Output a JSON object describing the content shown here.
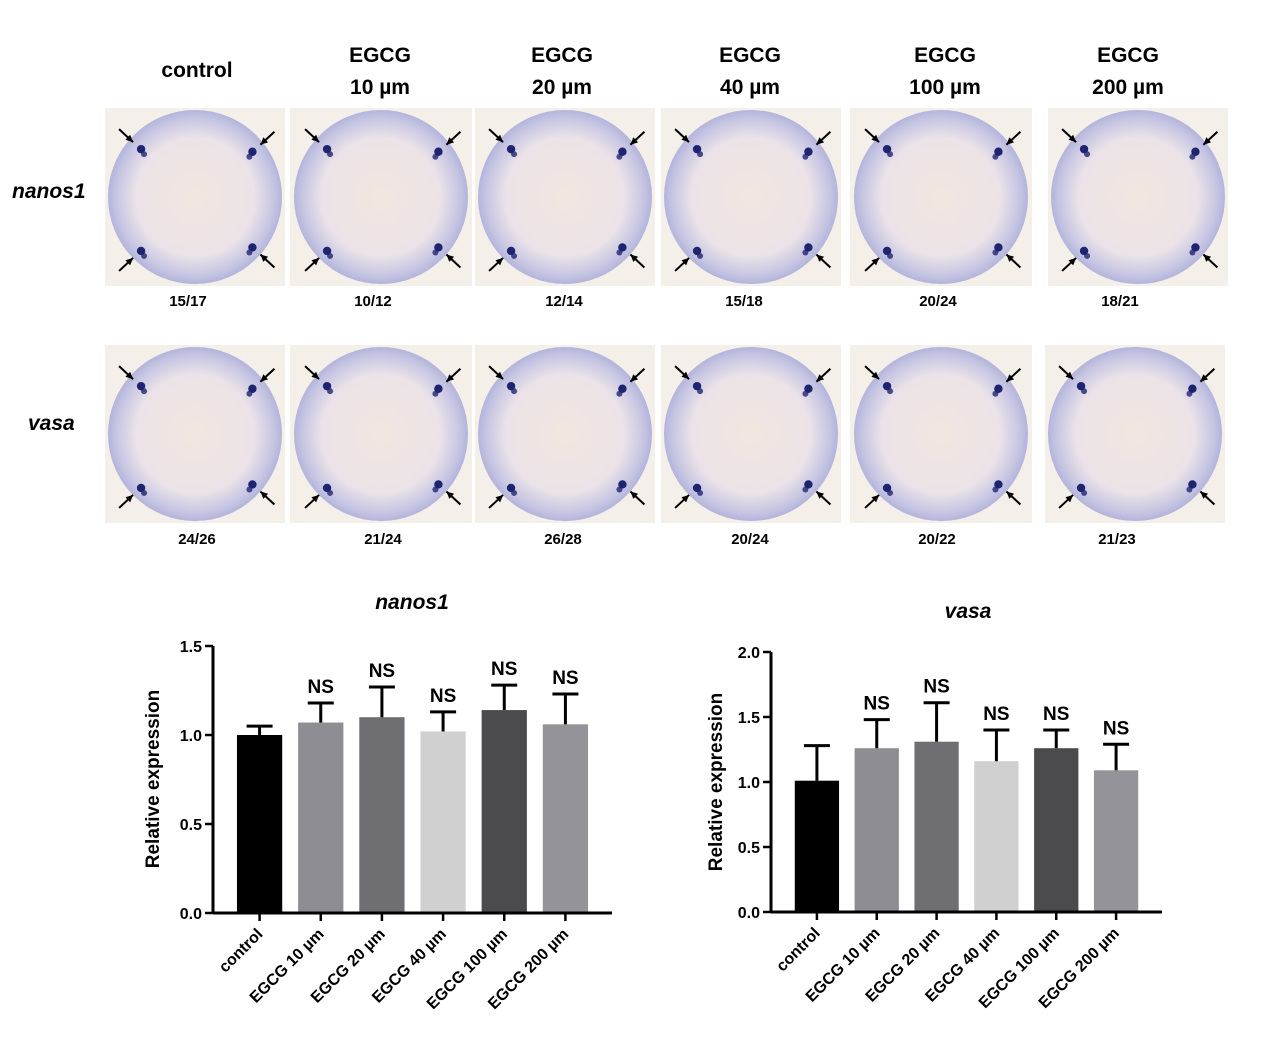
{
  "columns": [
    {
      "line1": "control",
      "line2": ""
    },
    {
      "line1": "EGCG",
      "line2": "10 µm"
    },
    {
      "line1": "EGCG",
      "line2": "20 µm"
    },
    {
      "line1": "EGCG",
      "line2": "40 µm"
    },
    {
      "line1": "EGCG",
      "line2": "100 µm"
    },
    {
      "line1": "EGCG",
      "line2": "200 µm"
    }
  ],
  "rows": [
    {
      "label": "nanos1",
      "counts": [
        "15/17",
        "10/12",
        "12/14",
        "15/18",
        "20/24",
        "18/21"
      ]
    },
    {
      "label": "vasa",
      "counts": [
        "24/26",
        "21/24",
        "26/28",
        "20/24",
        "20/22",
        "21/23"
      ]
    }
  ],
  "colors": {
    "embryo_fill": "#ece6ec",
    "embryo_rim": "#a9abd6",
    "embryo_center": "#f3e6df",
    "spot": "#1e2470",
    "background_tile": "#f4efe9",
    "bars": [
      "#000000",
      "#8e8d94",
      "#6e6e73",
      "#d0d0d0",
      "#4b4b4e",
      "#939399"
    ]
  },
  "chart_data": [
    {
      "type": "bar",
      "title": "nanos1",
      "ylabel": "Relative expression",
      "xlabel": "",
      "categories": [
        "control",
        "EGCG 10 µm",
        "EGCG 20 µm",
        "EGCG 40 µm",
        "EGCG 100 µm",
        "EGCG 200 µm"
      ],
      "values": [
        1.0,
        1.07,
        1.1,
        1.02,
        1.14,
        1.06
      ],
      "errors": [
        0.05,
        0.11,
        0.17,
        0.11,
        0.14,
        0.17
      ],
      "annotations": [
        "",
        "NS",
        "NS",
        "NS",
        "NS",
        "NS"
      ],
      "ylim": [
        0,
        1.5
      ],
      "yticks": [
        "0.0",
        "0.5",
        "1.0",
        "1.5"
      ],
      "grid": false
    },
    {
      "type": "bar",
      "title": "vasa",
      "ylabel": "Relative expression",
      "xlabel": "",
      "categories": [
        "control",
        "EGCG 10 µm",
        "EGCG 20 µm",
        "EGCG 40 µm",
        "EGCG 100 µm",
        "EGCG 200 µm"
      ],
      "values": [
        1.01,
        1.26,
        1.31,
        1.16,
        1.26,
        1.09
      ],
      "errors": [
        0.27,
        0.22,
        0.3,
        0.24,
        0.14,
        0.2
      ],
      "annotations": [
        "",
        "NS",
        "NS",
        "NS",
        "NS",
        "NS"
      ],
      "ylim": [
        0,
        2.0
      ],
      "yticks": [
        "0.0",
        "0.5",
        "1.0",
        "1.5",
        "2.0"
      ],
      "grid": false
    }
  ]
}
